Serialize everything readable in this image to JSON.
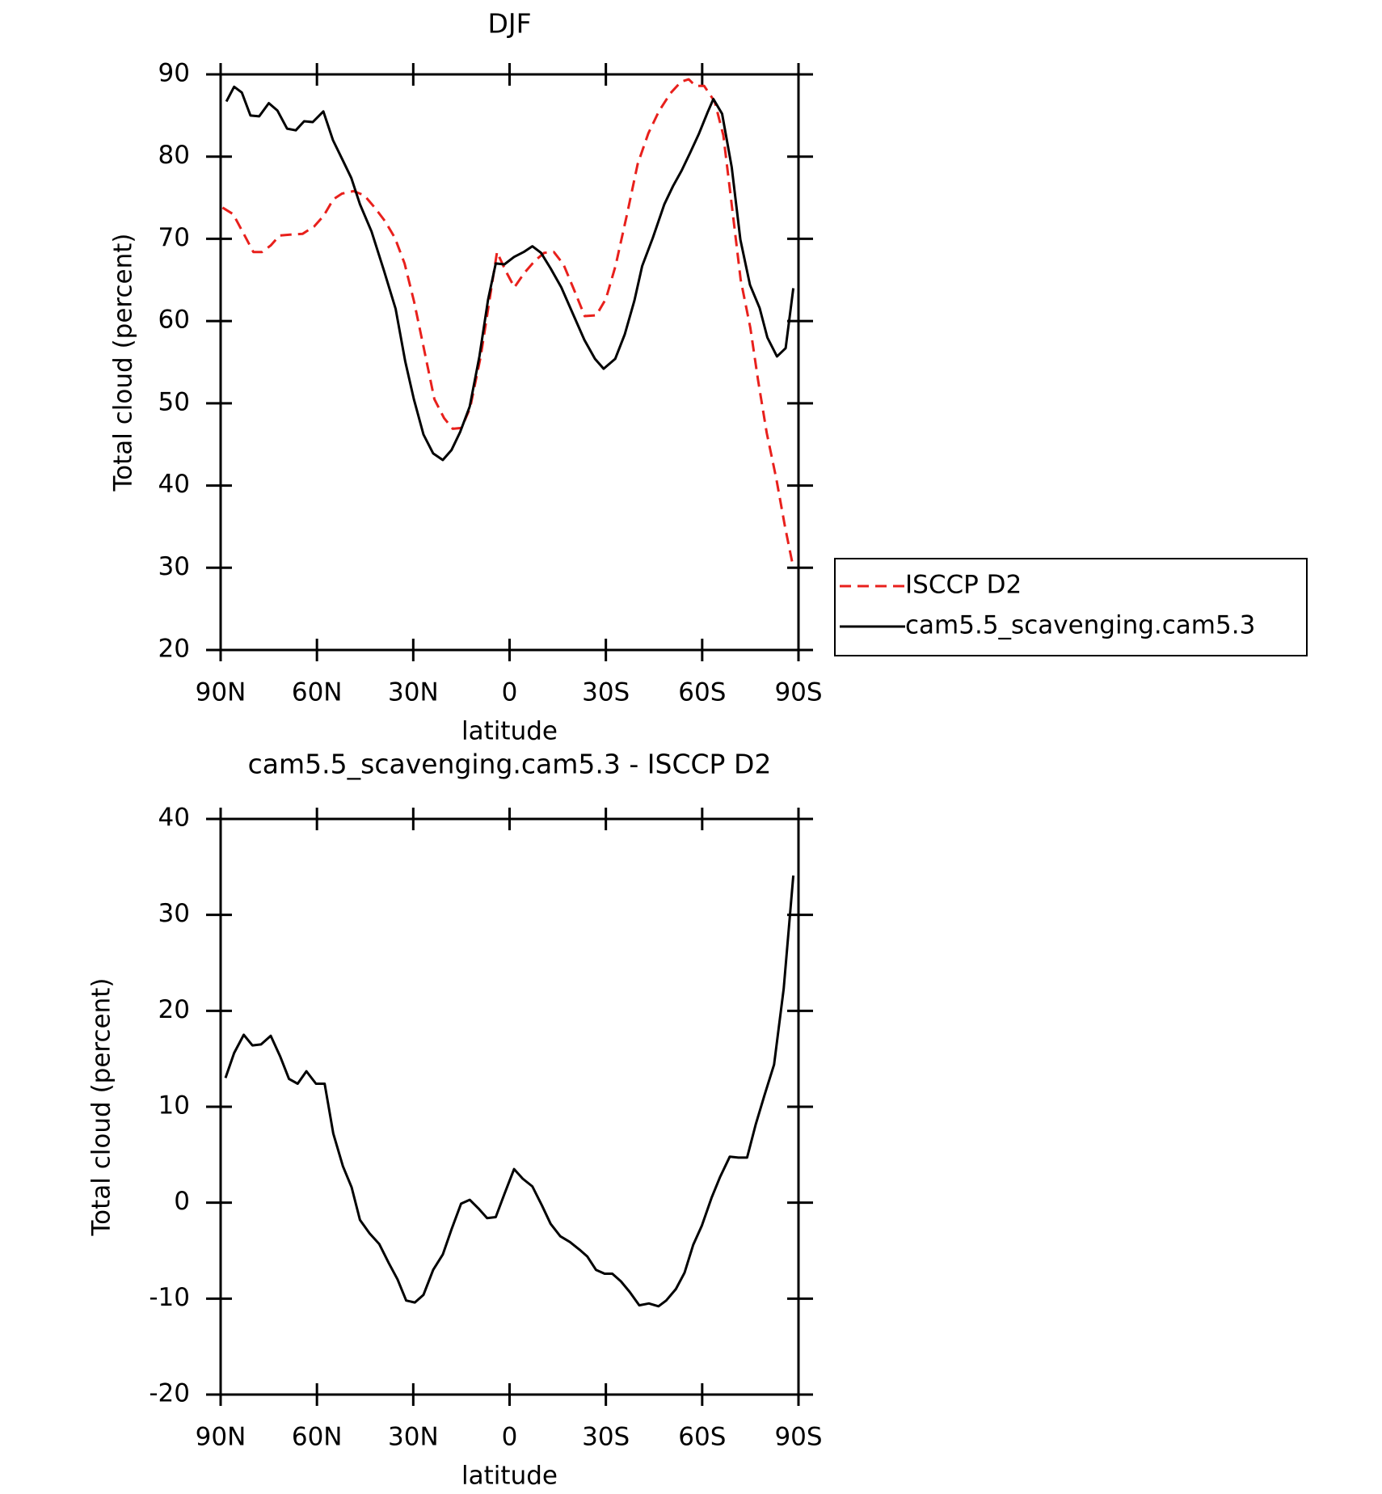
{
  "chart_data": [
    {
      "type": "line",
      "title": "DJF",
      "xlabel": "latitude",
      "ylabel": "Total cloud (percent)",
      "xlim": [
        90,
        -90
      ],
      "ylim": [
        20,
        90
      ],
      "xticks": [
        {
          "value": 90,
          "label": "90N"
        },
        {
          "value": 60,
          "label": "60N"
        },
        {
          "value": 30,
          "label": "30N"
        },
        0,
        {
          "value": -30,
          "label": "30S"
        },
        {
          "value": -60,
          "label": "60S"
        },
        {
          "value": -90,
          "label": "90S"
        }
      ],
      "yticks": [
        20,
        30,
        40,
        50,
        60,
        70,
        80,
        90
      ],
      "legend": "right",
      "series": [
        {
          "name": "ISCCP D2",
          "color": "#e8201c",
          "dashed": true,
          "x": [
            89.4,
            86.1,
            82.8,
            79.8,
            77.1,
            74.4,
            71.7,
            68.4,
            64.5,
            60.9,
            57.9,
            54.9,
            52.2,
            48.6,
            45.3,
            42.0,
            38.7,
            35.7,
            32.7,
            29.7,
            26.7,
            23.4,
            20.4,
            17.7,
            15.0,
            12.3,
            9.0,
            6.0,
            3.9,
            1.2,
            -1.5,
            -4.5,
            -7.8,
            -10.8,
            -13.8,
            -16.8,
            -20.1,
            -23.4,
            -27.0,
            -30.0,
            -33.0,
            -36.6,
            -39.9,
            -43.2,
            -46.5,
            -50.1,
            -53.4,
            -55.8,
            -57.9,
            -60.6,
            -63.9,
            -66.6,
            -69.0,
            -72.0,
            -75.0,
            -77.4,
            -80.1,
            -83.1,
            -85.8,
            -88.4
          ],
          "values": [
            73.8,
            73.0,
            70.6,
            68.4,
            68.4,
            69.2,
            70.4,
            70.5,
            70.6,
            71.5,
            72.8,
            74.8,
            75.5,
            75.8,
            75.3,
            73.8,
            72.1,
            70.1,
            67.0,
            62.3,
            56.7,
            50.5,
            48.2,
            46.9,
            47.0,
            49.4,
            55.7,
            63.2,
            68.4,
            66.1,
            64.1,
            65.8,
            67.3,
            68.3,
            68.4,
            66.9,
            63.8,
            60.6,
            60.7,
            62.7,
            66.7,
            73.0,
            79.1,
            82.8,
            85.5,
            87.7,
            89.1,
            89.4,
            88.6,
            88.6,
            86.7,
            82.6,
            74.8,
            65.0,
            59.2,
            52.8,
            46.4,
            40.8,
            35.0,
            30.0
          ]
        },
        {
          "name": "cam5.5_scavenging.cam5.3",
          "color": "#000000",
          "dashed": false,
          "x": [
            88.2,
            85.8,
            83.4,
            80.7,
            78.0,
            75.0,
            72.3,
            69.3,
            66.6,
            64.0,
            61.3,
            58.0,
            55.0,
            52.0,
            49.3,
            46.6,
            43.0,
            39.1,
            35.5,
            32.5,
            29.8,
            26.8,
            23.8,
            20.8,
            18.1,
            15.4,
            12.4,
            9.4,
            6.7,
            4.3,
            1.6,
            -1.4,
            -4.4,
            -7.1,
            -9.8,
            -12.8,
            -16.1,
            -19.7,
            -23.3,
            -26.6,
            -29.3,
            -32.9,
            -35.9,
            -38.9,
            -41.3,
            -44.6,
            -48.2,
            -50.9,
            -53.6,
            -56.3,
            -59.0,
            -61.7,
            -63.5,
            -66.2,
            -69.2,
            -71.9,
            -74.9,
            -77.9,
            -80.3,
            -83.3,
            -86.0,
            -88.4
          ],
          "values": [
            86.7,
            88.5,
            87.8,
            85.0,
            84.9,
            86.5,
            85.6,
            83.4,
            83.2,
            84.3,
            84.2,
            85.5,
            82.0,
            79.6,
            77.4,
            74.2,
            70.9,
            66.1,
            61.5,
            55.1,
            50.5,
            46.2,
            43.9,
            43.1,
            44.3,
            46.5,
            49.6,
            55.7,
            62.6,
            67.0,
            66.9,
            67.8,
            68.4,
            69.1,
            68.3,
            66.4,
            64.1,
            60.9,
            57.7,
            55.4,
            54.2,
            55.4,
            58.4,
            62.5,
            66.7,
            70.1,
            74.2,
            76.4,
            78.3,
            80.5,
            82.8,
            85.4,
            87.0,
            85.2,
            78.7,
            69.9,
            64.4,
            61.6,
            58.0,
            55.7,
            56.7,
            64.0
          ]
        }
      ]
    },
    {
      "type": "line",
      "title": "cam5.5_scavenging.cam5.3 - ISCCP D2",
      "xlabel": "latitude",
      "ylabel": "Total cloud (percent)",
      "xlim": [
        90,
        -90
      ],
      "ylim": [
        -20,
        40
      ],
      "xticks": [
        {
          "value": 90,
          "label": "90N"
        },
        {
          "value": 60,
          "label": "60N"
        },
        {
          "value": 30,
          "label": "30N"
        },
        0,
        {
          "value": -30,
          "label": "30S"
        },
        {
          "value": -60,
          "label": "60S"
        },
        {
          "value": -90,
          "label": "90S"
        }
      ],
      "yticks": [
        -20,
        -10,
        0,
        10,
        20,
        30,
        40
      ],
      "series": [
        {
          "color": "#000000",
          "dashed": false,
          "x": [
            88.5,
            85.8,
            82.8,
            80.1,
            77.4,
            74.4,
            71.4,
            68.7,
            66.0,
            63.3,
            60.3,
            57.6,
            54.9,
            51.9,
            49.2,
            46.6,
            43.6,
            40.6,
            37.6,
            34.9,
            32.2,
            29.5,
            26.8,
            23.8,
            20.8,
            18.1,
            15.1,
            12.4,
            9.7,
            7.0,
            4.3,
            1.6,
            -1.4,
            -4.1,
            -7.1,
            -10.1,
            -12.8,
            -15.8,
            -18.8,
            -21.8,
            -24.2,
            -26.9,
            -29.6,
            -32.0,
            -34.7,
            -37.4,
            -40.4,
            -43.4,
            -46.4,
            -48.8,
            -51.8,
            -54.5,
            -57.2,
            -59.9,
            -62.9,
            -65.6,
            -68.6,
            -71.3,
            -74.0,
            -76.7,
            -79.4,
            -82.4,
            -85.4,
            -88.4
          ],
          "values": [
            13.0,
            15.6,
            17.5,
            16.4,
            16.5,
            17.4,
            15.2,
            12.9,
            12.4,
            13.7,
            12.4,
            12.4,
            7.2,
            3.8,
            1.6,
            -1.8,
            -3.2,
            -4.3,
            -6.3,
            -8.0,
            -10.2,
            -10.4,
            -9.6,
            -7.0,
            -5.4,
            -2.8,
            -0.1,
            0.3,
            -0.6,
            -1.6,
            -1.5,
            0.9,
            3.5,
            2.5,
            1.7,
            -0.3,
            -2.2,
            -3.5,
            -4.1,
            -4.9,
            -5.6,
            -7.0,
            -7.4,
            -7.4,
            -8.2,
            -9.3,
            -10.7,
            -10.5,
            -10.8,
            -10.2,
            -9.0,
            -7.3,
            -4.4,
            -2.4,
            0.5,
            2.7,
            4.8,
            4.7,
            4.7,
            8.2,
            11.2,
            14.4,
            22.3,
            34.1
          ]
        }
      ]
    }
  ]
}
